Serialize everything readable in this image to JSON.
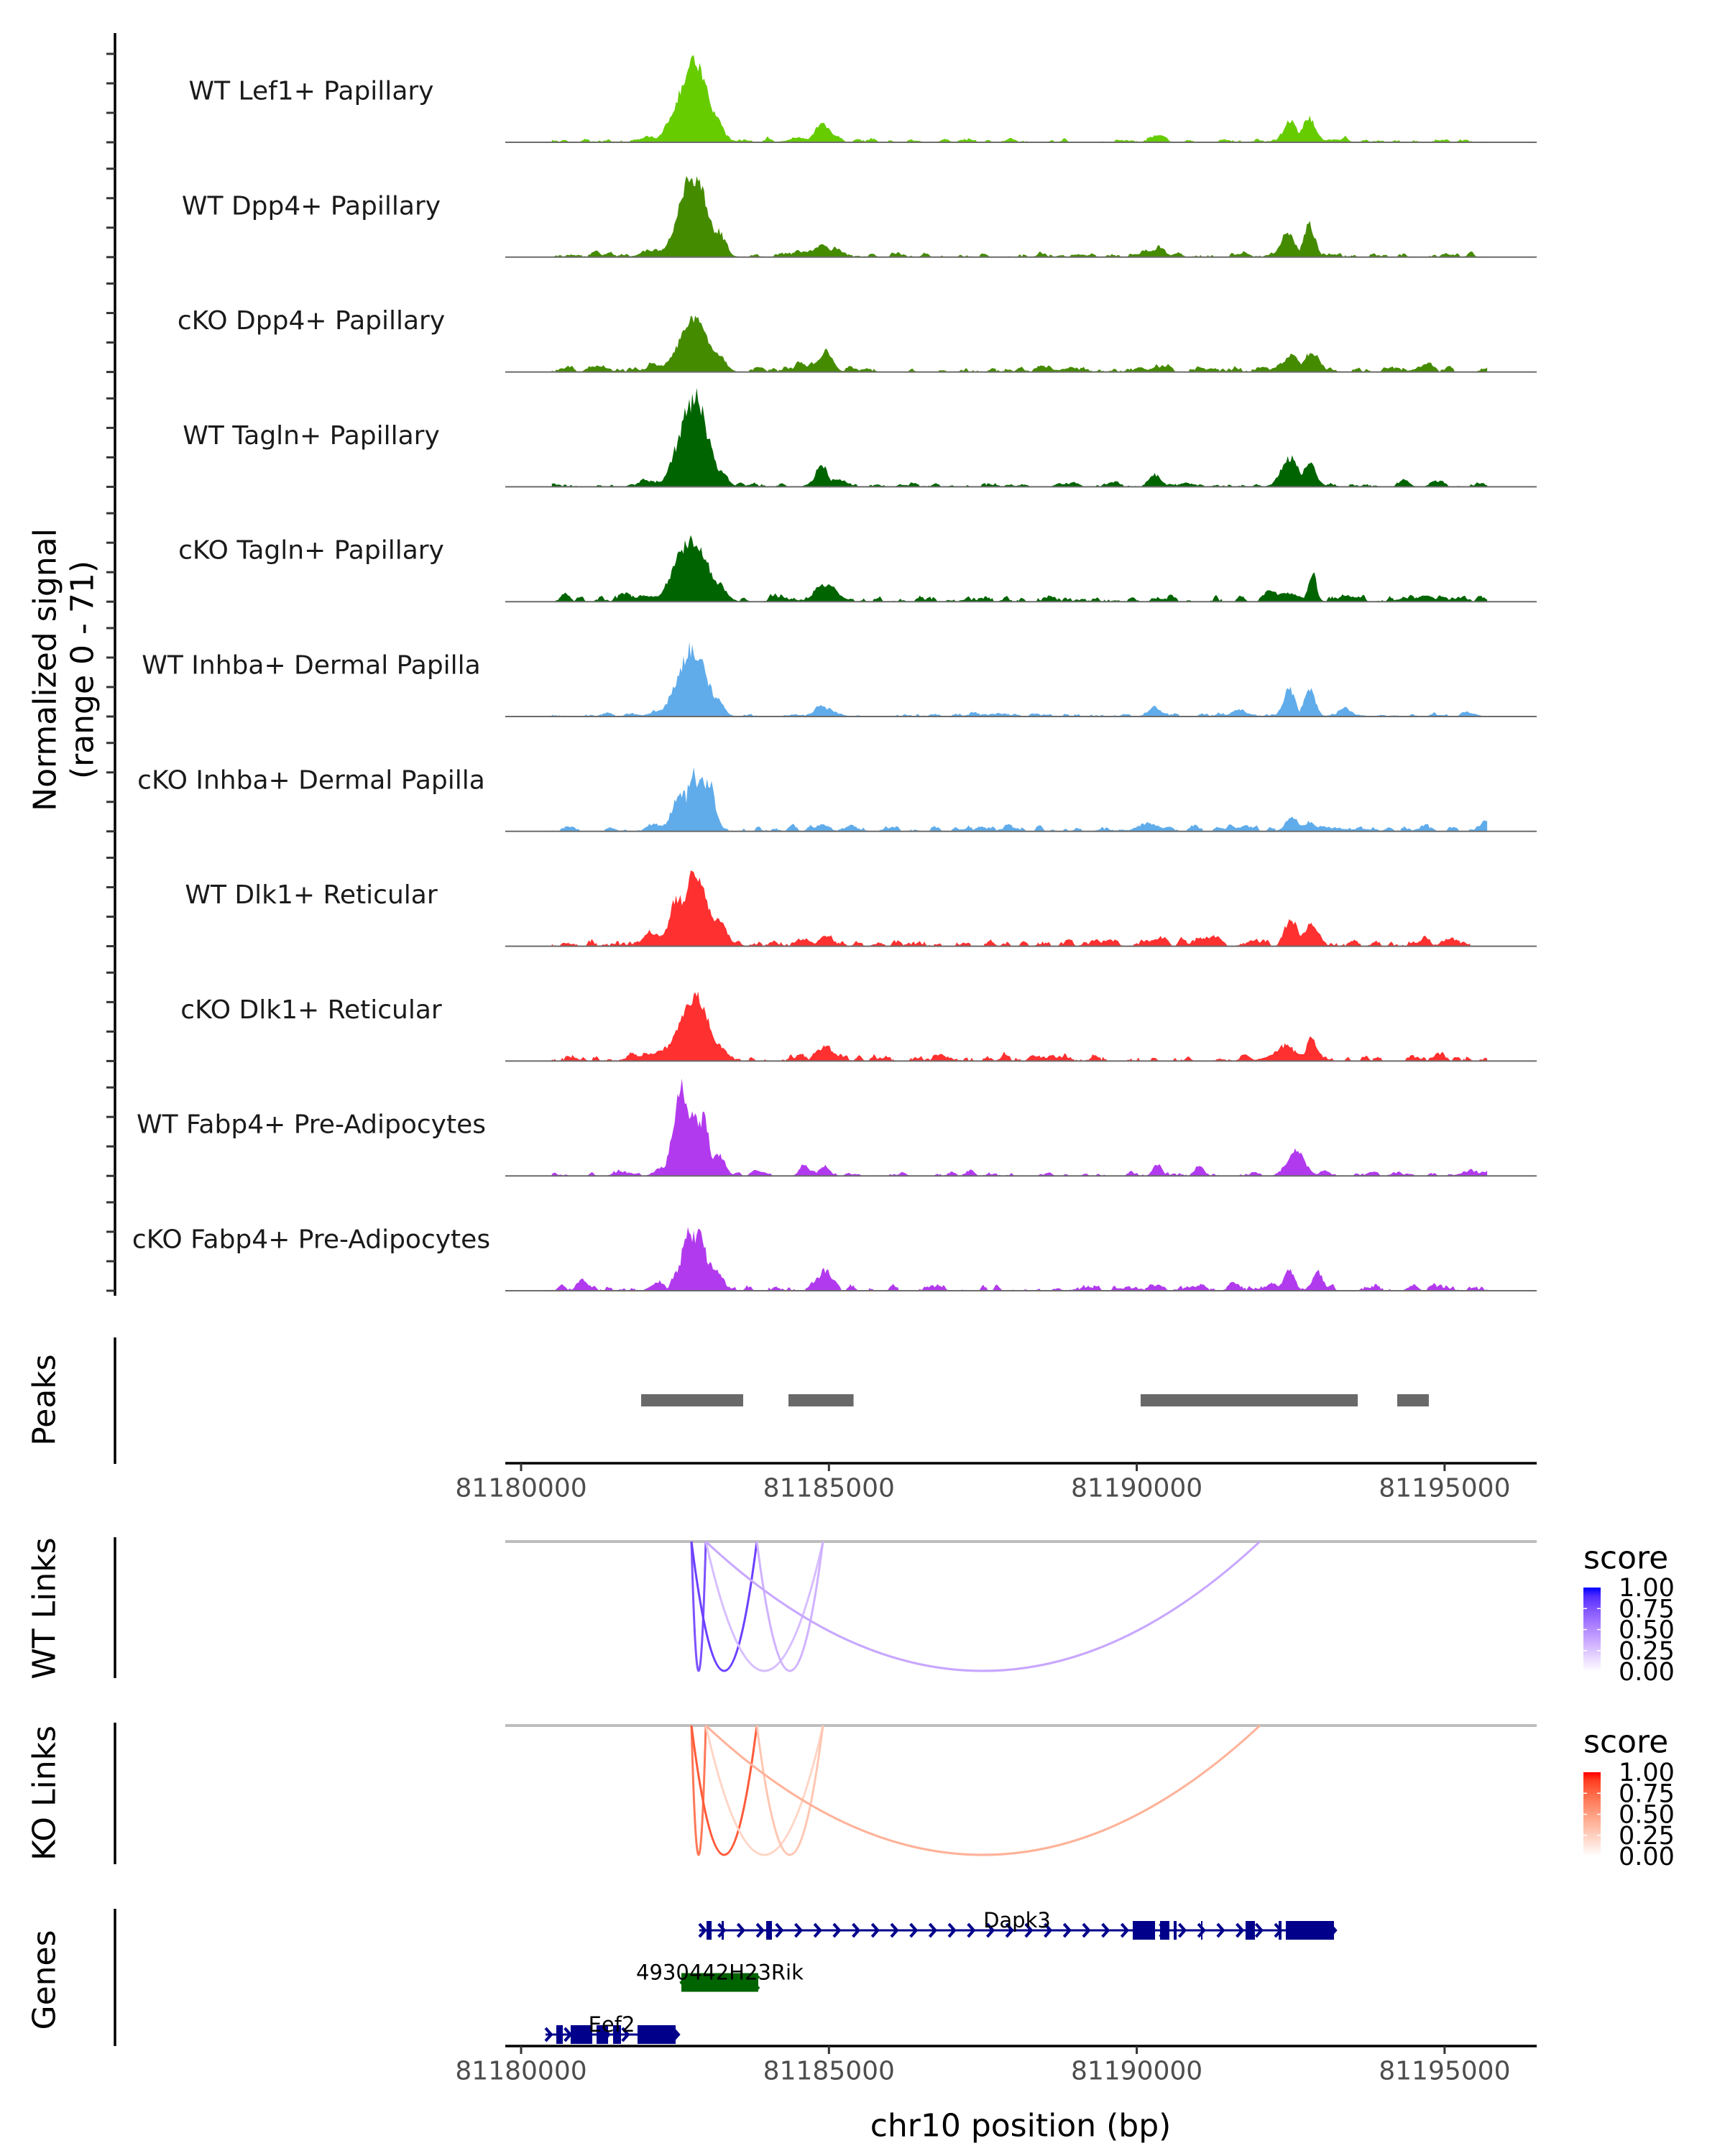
{
  "chart_data": {
    "type": "area",
    "title": "",
    "ylabel_lines": [
      "Normalized signal",
      "(range 0 - 71)"
    ],
    "ylim": [
      0,
      71
    ],
    "y_ticks": [
      0,
      20,
      40,
      60
    ],
    "xlabel": "chr10 position (bp)",
    "xlim": [
      81179743,
      81196496
    ],
    "x_ticks": [
      81180000,
      81185000,
      81190000,
      81195000
    ],
    "x_tick_labels": [
      "81180000",
      "81185000",
      "81190000",
      "81195000"
    ],
    "coverage_window": [
      81180500,
      81195700
    ],
    "tracks": [
      {
        "label": "WT Lef1+ Papillary",
        "color": "#66CC00",
        "background": 1.2,
        "jitter": 0.22,
        "seed": 11,
        "peaks": [
          [
            81182800,
            58,
            240
          ],
          [
            81183150,
            18,
            120
          ],
          [
            81182100,
            4,
            150
          ],
          [
            81184900,
            13,
            130
          ],
          [
            81184550,
            3,
            200
          ],
          [
            81190330,
            5,
            100
          ],
          [
            81192500,
            15,
            110
          ],
          [
            81192800,
            18,
            110
          ],
          [
            81193200,
            2,
            200
          ]
        ]
      },
      {
        "label": "WT Dpp4+ Papillary",
        "color": "#458B00",
        "background": 1.4,
        "jitter": 0.25,
        "seed": 23,
        "peaks": [
          [
            81182800,
            59,
            230
          ],
          [
            81183200,
            20,
            110
          ],
          [
            81182100,
            5,
            150
          ],
          [
            81184880,
            10,
            110
          ],
          [
            81185100,
            7,
            100
          ],
          [
            81184600,
            4,
            150
          ],
          [
            81190330,
            6.5,
            90
          ],
          [
            81192450,
            19,
            110
          ],
          [
            81192800,
            25,
            90
          ]
        ]
      },
      {
        "label": "cKO Dpp4+ Papillary",
        "color": "#458B00",
        "background": 1.6,
        "jitter": 0.22,
        "seed": 37,
        "peaks": [
          [
            81182800,
            39,
            230
          ],
          [
            81183190,
            14,
            120
          ],
          [
            81182270,
            5,
            200
          ],
          [
            81181280,
            3,
            150
          ],
          [
            81184940,
            12.5,
            120
          ],
          [
            81184600,
            4,
            200
          ],
          [
            81190310,
            3,
            120
          ],
          [
            81192500,
            11.5,
            120
          ],
          [
            81192830,
            11,
            130
          ],
          [
            81194600,
            2.4,
            150
          ]
        ]
      },
      {
        "label": "WT Tagln+ Papillary",
        "color": "#006400",
        "background": 1.2,
        "jitter": 0.28,
        "seed": 41,
        "peaks": [
          [
            81182800,
            70,
            220
          ],
          [
            81183250,
            12,
            100
          ],
          [
            81182100,
            4,
            150
          ],
          [
            81184880,
            15,
            100
          ],
          [
            81185100,
            5,
            100
          ],
          [
            81190310,
            9,
            80
          ],
          [
            81192500,
            20,
            150
          ],
          [
            81192800,
            18,
            110
          ],
          [
            81194360,
            4,
            80
          ],
          [
            81194830,
            3,
            80
          ]
        ]
      },
      {
        "label": "cKO Tagln+ Papillary",
        "color": "#006400",
        "background": 1.8,
        "jitter": 0.22,
        "seed": 53,
        "peaks": [
          [
            81182780,
            47,
            250
          ],
          [
            81183200,
            13,
            130
          ],
          [
            81182100,
            4,
            300
          ],
          [
            81184960,
            12.5,
            170
          ],
          [
            81184250,
            2,
            150
          ],
          [
            81192450,
            6.5,
            200
          ],
          [
            81192850,
            18,
            70
          ],
          [
            81193460,
            4,
            120
          ],
          [
            81194690,
            5,
            120
          ]
        ]
      },
      {
        "label": "WT Inhba+ Dermal Papilla",
        "color": "#60ACEB",
        "background": 1.0,
        "jitter": 0.25,
        "seed": 67,
        "peaks": [
          [
            81182780,
            51,
            230
          ],
          [
            81183150,
            15,
            120
          ],
          [
            81182200,
            3,
            150
          ],
          [
            81184880,
            6.5,
            130
          ],
          [
            81190310,
            5.4,
            100
          ],
          [
            81191640,
            5.4,
            100
          ],
          [
            81192480,
            21,
            90
          ],
          [
            81192810,
            20,
            90
          ],
          [
            81193390,
            6,
            100
          ],
          [
            81195450,
            2,
            100
          ]
        ]
      },
      {
        "label": "cKO Inhba+ Dermal Papilla",
        "color": "#60ACEB",
        "background": 1.6,
        "jitter": 0.3,
        "seed": 71,
        "peaks": [
          [
            81182600,
            32,
            120
          ],
          [
            81182800,
            45,
            110
          ],
          [
            81182930,
            38,
            90
          ],
          [
            81183050,
            36,
            90
          ],
          [
            81182100,
            5,
            80
          ],
          [
            81184900,
            3,
            100
          ],
          [
            81190100,
            5,
            120
          ],
          [
            81191770,
            4.5,
            80
          ],
          [
            81192520,
            11,
            100
          ],
          [
            81192900,
            4,
            350
          ],
          [
            81194090,
            3,
            60
          ],
          [
            81194650,
            3,
            100
          ],
          [
            81195670,
            3,
            40
          ]
        ]
      },
      {
        "label": "WT Dlk1+ Reticular",
        "color": "#FF3030",
        "background": 2.0,
        "jitter": 0.2,
        "seed": 83,
        "peaks": [
          [
            81182850,
            54,
            180
          ],
          [
            81182570,
            35,
            150
          ],
          [
            81183200,
            19,
            110
          ],
          [
            81182100,
            5,
            200
          ],
          [
            81184590,
            5,
            100
          ],
          [
            81184940,
            7.3,
            100
          ],
          [
            81190310,
            5.4,
            100
          ],
          [
            81191110,
            4,
            150
          ],
          [
            81192500,
            18,
            90
          ],
          [
            81192820,
            14,
            100
          ],
          [
            81194650,
            4.4,
            100
          ]
        ]
      },
      {
        "label": "cKO Dlk1+ Reticular",
        "color": "#FF3030",
        "background": 2.0,
        "jitter": 0.22,
        "seed": 97,
        "peaks": [
          [
            81182800,
            47.5,
            230
          ],
          [
            81183200,
            12,
            130
          ],
          [
            81182200,
            4,
            250
          ],
          [
            81184940,
            8,
            130
          ],
          [
            81191770,
            4.4,
            80
          ],
          [
            81192450,
            7.8,
            250
          ],
          [
            81192840,
            11.8,
            80
          ]
        ]
      },
      {
        "label": "WT Fabp4+ Pre-Adipocytes",
        "color": "#B23AEE",
        "background": 1.3,
        "jitter": 0.25,
        "seed": 101,
        "peaks": [
          [
            81182600,
            66,
            120
          ],
          [
            81182800,
            52,
            130
          ],
          [
            81182950,
            44,
            100
          ],
          [
            81183190,
            16.7,
            110
          ],
          [
            81182250,
            5,
            100
          ],
          [
            81181600,
            3,
            100
          ],
          [
            81184590,
            8.6,
            70
          ],
          [
            81184940,
            4.4,
            70
          ],
          [
            81190330,
            8.6,
            70
          ],
          [
            81191030,
            6.3,
            70
          ],
          [
            81192590,
            18,
            140
          ],
          [
            81193050,
            4,
            80
          ],
          [
            81195450,
            2.5,
            60
          ]
        ]
      },
      {
        "label": "cKO Fabp4+ Pre-Adipocytes",
        "color": "#B23AEE",
        "background": 1.8,
        "jitter": 0.3,
        "seed": 113,
        "peaks": [
          [
            81182750,
            42,
            150
          ],
          [
            81182900,
            44,
            120
          ],
          [
            81183100,
            20,
            130
          ],
          [
            81182200,
            6,
            100
          ],
          [
            81181000,
            3,
            80
          ],
          [
            81184940,
            15,
            100
          ],
          [
            81192460,
            15.4,
            80
          ],
          [
            81192940,
            14,
            90
          ],
          [
            81191590,
            6.5,
            80
          ],
          [
            81190330,
            3.5,
            70
          ],
          [
            81194480,
            4,
            80
          ]
        ]
      }
    ],
    "peaks_track": {
      "label": "Peaks",
      "color": "#696969",
      "regions": [
        [
          81181950,
          81183607
        ],
        [
          81184343,
          81185400
        ],
        [
          81190063,
          81193589
        ],
        [
          81194231,
          81194744
        ]
      ]
    },
    "link_tracks": [
      {
        "label": "WT Links",
        "legend_title": "score",
        "low_color": "#FFFFFF",
        "high_color": "#0000FF",
        "baseline_color": "#BEBEBE",
        "legend_breaks": [
          1,
          0.75,
          0.5,
          0.25,
          0
        ],
        "legend_labels": [
          "1.00",
          "0.75",
          "0.50",
          "0.25",
          "0.00"
        ],
        "links": [
          {
            "start": 81182767,
            "end": 81183000,
            "score": 0.75
          },
          {
            "start": 81182767,
            "end": 81183829,
            "score": 0.82
          },
          {
            "start": 81183000,
            "end": 81184903,
            "score": 0.28
          },
          {
            "start": 81183829,
            "end": 81184903,
            "score": 0.33
          },
          {
            "start": 81183000,
            "end": 81192000,
            "score": 0.38
          }
        ]
      },
      {
        "label": "KO Links",
        "legend_title": "score",
        "low_color": "#FFFFFF",
        "high_color": "#FF0000",
        "baseline_color": "#BEBEBE",
        "legend_breaks": [
          1,
          0.75,
          0.5,
          0.25,
          0
        ],
        "legend_labels": [
          "1.00",
          "0.75",
          "0.50",
          "0.25",
          "0.00"
        ],
        "links": [
          {
            "start": 81182767,
            "end": 81183000,
            "score": 0.68
          },
          {
            "start": 81182767,
            "end": 81183829,
            "score": 0.8
          },
          {
            "start": 81183000,
            "end": 81184903,
            "score": 0.22
          },
          {
            "start": 81183829,
            "end": 81184903,
            "score": 0.3
          },
          {
            "start": 81183000,
            "end": 81192000,
            "score": 0.4
          }
        ]
      }
    ],
    "genes_track": {
      "label": "Genes",
      "genes": [
        {
          "name": "Dapk3",
          "strand": "+",
          "color": "#00008B",
          "start": 81182895,
          "end": 81193215,
          "exons": [
            [
              81183012,
              81183094
            ],
            [
              81183257,
              81183292
            ],
            [
              81183981,
              81184074
            ],
            [
              81189935,
              81190297
            ],
            [
              81190378,
              81190530
            ],
            [
              81190600,
              81190647
            ],
            [
              81191044,
              81191067
            ],
            [
              81191767,
              81191919
            ],
            [
              81192305,
              81192351
            ],
            [
              81192421,
              81193203
            ]
          ]
        },
        {
          "name": "4930442H23Rik",
          "strand": "-",
          "color": "#006400",
          "start": 81182603,
          "end": 81183852,
          "exons": [
            [
              81182603,
              81183852
            ]
          ]
        },
        {
          "name": "Eef2",
          "strand": "+",
          "color": "#00008B",
          "start": 81180397,
          "end": 81182545,
          "exons": [
            [
              81180572,
              81180677
            ],
            [
              81180805,
              81181156
            ],
            [
              81181226,
              81181413
            ],
            [
              81181494,
              81181623
            ],
            [
              81181891,
              81182510
            ]
          ]
        }
      ]
    }
  }
}
